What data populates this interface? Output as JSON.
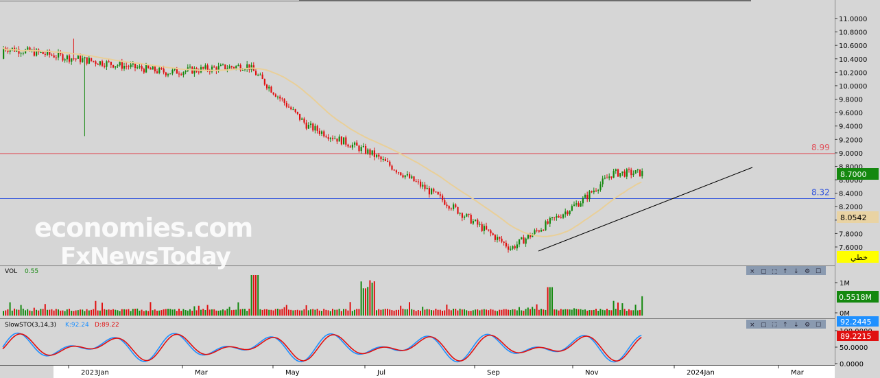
{
  "watermark": {
    "line1": "economies.com",
    "line2": "FxNewsToday"
  },
  "price_panel": {
    "y_ticks": [
      "11.0000",
      "10.8000",
      "10.6000",
      "10.4000",
      "10.2000",
      "10.0000",
      "9.8000",
      "9.6000",
      "9.4000",
      "9.2000",
      "9.0000",
      "8.8000",
      "8.6000",
      "8.4000",
      "8.2000",
      "8.0000",
      "7.8000",
      "7.6000"
    ],
    "resistance": {
      "label": "8.99",
      "value": 8.99,
      "color": "#e0505a"
    },
    "support": {
      "label": "8.32",
      "value": 8.32,
      "color": "#3355dd"
    },
    "last_price": {
      "label": "8.7000",
      "bg": "#14880f"
    },
    "ma_value": {
      "label": "8.0542",
      "bg": "#e9d3a3"
    },
    "linear_tag": {
      "label": "خطي",
      "bg": "#ffff00"
    }
  },
  "volume_panel": {
    "title": "VOL",
    "value": "0.55",
    "y_ticks": [
      "1M",
      "0M"
    ],
    "last_volume": {
      "label": "0.5518M",
      "bg": "#14880f"
    }
  },
  "stoch_panel": {
    "title": "SlowSTO(3,14,3)",
    "k_label": "K:92.24",
    "d_label": "D:89.22",
    "y_ticks": [
      "100.0000",
      "50.0000",
      "0.0000"
    ],
    "k_value": {
      "label": "92.2445",
      "bg": "#1e90ff"
    },
    "d_value": {
      "label": "89.2215",
      "bg": "#e01010"
    }
  },
  "panel_buttons": [
    "close-icon",
    "minimize-icon",
    "maximize-icon",
    "move-up-icon",
    "move-down-icon",
    "settings-icon",
    "hide-icon"
  ],
  "time_axis": {
    "labels": [
      "2023Jan",
      "Mar",
      "May",
      "Jul",
      "Sep",
      "Nov",
      "2024Jan",
      "Mar"
    ]
  },
  "colors": {
    "up": "#14880f",
    "down": "#e01010",
    "ma": "#e9cf98",
    "trendline": "#000000",
    "stoch_k": "#1e90ff",
    "stoch_d": "#e01010"
  },
  "chart_data": {
    "type": "candlestick",
    "y_range": [
      7.5,
      11.1
    ],
    "trendline": {
      "from": {
        "date": "2023-10-05",
        "price": 7.55
      },
      "to": {
        "date": "2024-01-20",
        "price": 8.75
      }
    },
    "key_points": [
      {
        "date": "2023-01-01",
        "price": 10.35
      },
      {
        "date": "2023-02-15",
        "price": 10.2
      },
      {
        "date": "2023-04-10",
        "price": 10.3
      },
      {
        "date": "2023-05-20",
        "price": 9.4
      },
      {
        "date": "2023-07-01",
        "price": 9.0
      },
      {
        "date": "2023-08-15",
        "price": 8.35
      },
      {
        "date": "2023-10-03",
        "price": 7.58
      },
      {
        "date": "2023-11-20",
        "price": 8.3
      },
      {
        "date": "2023-12-10",
        "price": 8.7
      }
    ]
  }
}
